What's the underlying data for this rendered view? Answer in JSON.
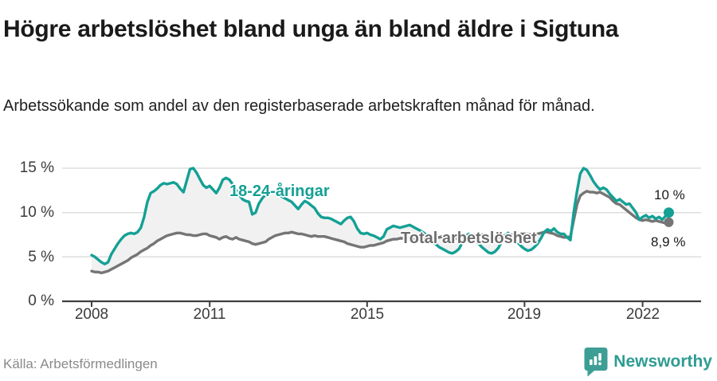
{
  "header": {
    "title": "Högre arbetslöshet bland unga än bland äldre i Sigtuna",
    "subtitle": "Arbetssökande som andel av den registerbaserade arbetskraften månad för månad."
  },
  "chart_data": {
    "type": "line",
    "title": "Högre arbetslöshet bland unga än bland äldre i Sigtuna",
    "subtitle": "Arbetssökande som andel av den registerbaserade arbetskraften månad för månad.",
    "unit": "%",
    "x_start": {
      "year": 2008,
      "month": 1
    },
    "x_end": {
      "year": 2022,
      "month": 9
    },
    "x_interval": "monthly",
    "ylim": [
      0,
      16.5
    ],
    "grid": "horizontal",
    "fill_between_color": "#f1f1f1",
    "axis_color": "#3f3f3f",
    "grid_color": "#dedede",
    "yticks": [
      {
        "label": "15 %",
        "value": 15
      },
      {
        "label": "10 %",
        "value": 10
      },
      {
        "label": "5 %",
        "value": 5
      },
      {
        "label": "0 %",
        "value": 0
      }
    ],
    "xticks": [
      {
        "label": "2008",
        "year": 2008
      },
      {
        "label": "2011",
        "year": 2011
      },
      {
        "label": "2015",
        "year": 2015
      },
      {
        "label": "2019",
        "year": 2019
      },
      {
        "label": "2022",
        "year": 2022
      }
    ],
    "series": [
      {
        "name": "18-24-åringar",
        "color": "#14a095",
        "end_label": "10 %",
        "end_value": 10.0,
        "values": [
          5.2,
          5.0,
          4.7,
          4.4,
          4.2,
          4.4,
          5.3,
          5.9,
          6.5,
          7.0,
          7.4,
          7.6,
          7.7,
          7.6,
          7.8,
          8.3,
          9.5,
          11.2,
          12.2,
          12.4,
          12.7,
          13.1,
          13.3,
          13.2,
          13.3,
          13.4,
          13.2,
          12.7,
          12.3,
          13.6,
          14.9,
          15.0,
          14.5,
          13.8,
          13.1,
          12.8,
          13.0,
          12.6,
          12.2,
          12.8,
          13.7,
          13.9,
          13.7,
          13.2,
          12.6,
          12.0,
          11.5,
          11.3,
          11.2,
          9.8,
          10.0,
          11.0,
          11.6,
          12.0,
          12.3,
          12.4,
          12.2,
          12.0,
          11.8,
          11.6,
          11.4,
          11.2,
          10.8,
          10.4,
          10.9,
          11.3,
          11.1,
          10.8,
          10.5,
          9.9,
          9.5,
          9.4,
          9.4,
          9.3,
          9.1,
          8.9,
          8.7,
          9.1,
          9.4,
          9.5,
          9.0,
          8.2,
          7.7,
          7.6,
          7.7,
          7.5,
          7.4,
          7.2,
          7.0,
          7.3,
          8.1,
          8.3,
          8.5,
          8.4,
          8.3,
          8.4,
          8.5,
          8.6,
          8.4,
          8.2,
          8.0,
          7.8,
          7.5,
          7.2,
          6.8,
          6.4,
          6.1,
          5.9,
          5.7,
          5.5,
          5.4,
          5.6,
          5.9,
          6.6,
          7.3,
          7.6,
          7.3,
          6.9,
          6.5,
          6.1,
          5.8,
          5.5,
          5.4,
          5.6,
          6.0,
          6.7,
          7.4,
          7.7,
          7.4,
          7.0,
          6.6,
          6.2,
          5.9,
          5.7,
          5.8,
          6.1,
          6.5,
          7.1,
          7.8,
          8.1,
          7.9,
          8.2,
          7.8,
          7.6,
          7.6,
          7.2,
          6.9,
          10.0,
          12.4,
          14.4,
          15.0,
          14.8,
          14.2,
          13.5,
          13.0,
          12.6,
          12.8,
          12.6,
          12.1,
          11.7,
          11.3,
          11.5,
          11.2,
          10.9,
          11.0,
          10.5,
          10.0,
          9.2,
          9.5,
          9.7,
          9.4,
          9.6,
          9.3,
          9.5,
          9.2,
          9.6,
          10.0
        ]
      },
      {
        "name": "Total arbetslöshet",
        "color": "#757575",
        "end_label": "8,9 %",
        "end_value": 8.9,
        "values": [
          3.4,
          3.3,
          3.3,
          3.2,
          3.3,
          3.4,
          3.6,
          3.8,
          4.0,
          4.2,
          4.4,
          4.6,
          4.9,
          5.1,
          5.3,
          5.6,
          5.8,
          6.0,
          6.3,
          6.5,
          6.8,
          7.0,
          7.2,
          7.4,
          7.5,
          7.6,
          7.7,
          7.7,
          7.6,
          7.5,
          7.5,
          7.4,
          7.4,
          7.5,
          7.6,
          7.6,
          7.4,
          7.3,
          7.2,
          7.0,
          7.2,
          7.3,
          7.1,
          7.0,
          7.2,
          7.0,
          6.9,
          6.8,
          6.7,
          6.5,
          6.4,
          6.5,
          6.6,
          6.7,
          7.0,
          7.2,
          7.4,
          7.5,
          7.6,
          7.7,
          7.7,
          7.8,
          7.7,
          7.6,
          7.6,
          7.5,
          7.4,
          7.3,
          7.4,
          7.3,
          7.3,
          7.3,
          7.2,
          7.1,
          7.0,
          6.9,
          6.8,
          6.7,
          6.5,
          6.4,
          6.3,
          6.2,
          6.1,
          6.1,
          6.2,
          6.3,
          6.3,
          6.4,
          6.5,
          6.6,
          6.8,
          6.9,
          7.0,
          7.0,
          7.1,
          7.1,
          7.1,
          7.1,
          7.0,
          7.0,
          7.0,
          7.0,
          7.1,
          7.1,
          7.2,
          7.2,
          7.2,
          7.3,
          7.3,
          7.2,
          7.2,
          7.1,
          7.1,
          7.2,
          7.3,
          7.4,
          7.4,
          7.4,
          7.4,
          7.5,
          7.5,
          7.4,
          7.3,
          7.3,
          7.2,
          7.3,
          7.4,
          7.5,
          7.5,
          7.5,
          7.5,
          7.6,
          7.6,
          7.6,
          7.5,
          7.5,
          7.6,
          7.7,
          7.8,
          7.8,
          7.7,
          7.6,
          7.4,
          7.3,
          7.2,
          7.2,
          7.3,
          9.1,
          10.9,
          11.9,
          12.2,
          12.4,
          12.3,
          12.3,
          12.2,
          12.3,
          12.1,
          11.9,
          11.7,
          11.3,
          11.0,
          10.9,
          10.6,
          10.3,
          10.0,
          9.7,
          9.4,
          9.2,
          9.1,
          9.2,
          9.1,
          9.0,
          9.1,
          9.0,
          8.9,
          8.8,
          8.9
        ]
      }
    ]
  },
  "footer": {
    "source": "Källa: Arbetsförmedlingen",
    "brand": "Newsworthy"
  }
}
